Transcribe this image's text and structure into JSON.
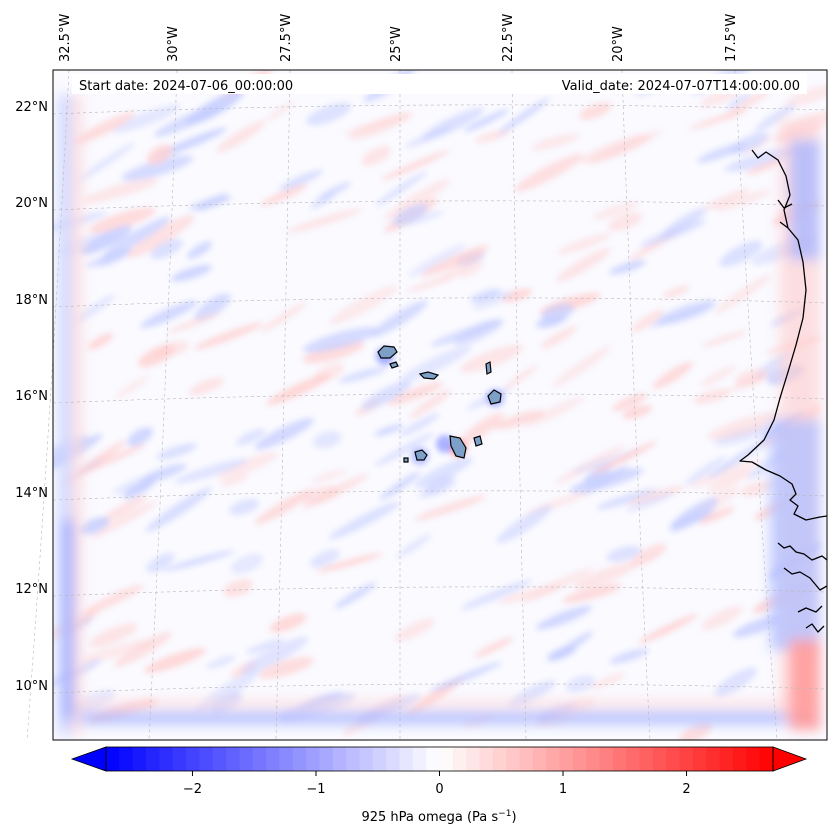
{
  "map": {
    "start_date": "Start date: 2024-07-06_00:00:00",
    "valid_date": "Valid_date: 2024-07-07T14:00:00.00",
    "longitude_labels": [
      "32.5°W",
      "30°W",
      "27.5°W",
      "25°W",
      "22.5°W",
      "20°W",
      "17.5°W"
    ],
    "latitude_labels": [
      "22°N",
      "20°N",
      "18°N",
      "16°N",
      "14°N",
      "12°N",
      "10°N"
    ],
    "colorbar": {
      "label_prefix": "925 hPa omega (Pa s",
      "label_exponent": "−1",
      "label_suffix": ")",
      "ticks": [
        "−2",
        "−1",
        "0",
        "1",
        "2"
      ],
      "tick_values": [
        -2,
        -1,
        0,
        1,
        2
      ],
      "range": [
        -2.7,
        2.7
      ],
      "extend": "both",
      "colormap": "bwr",
      "colors": {
        "negative": "#0000ff",
        "zero": "#ffffff",
        "positive": "#ff0000"
      }
    }
  }
}
